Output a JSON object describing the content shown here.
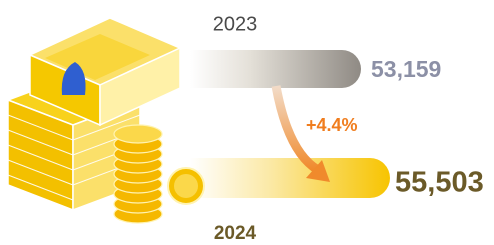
{
  "comparison": {
    "items": [
      {
        "year": "2023",
        "value": "53,159"
      },
      {
        "year": "2024",
        "value": "55,503"
      }
    ],
    "change": "+4.4%"
  }
}
